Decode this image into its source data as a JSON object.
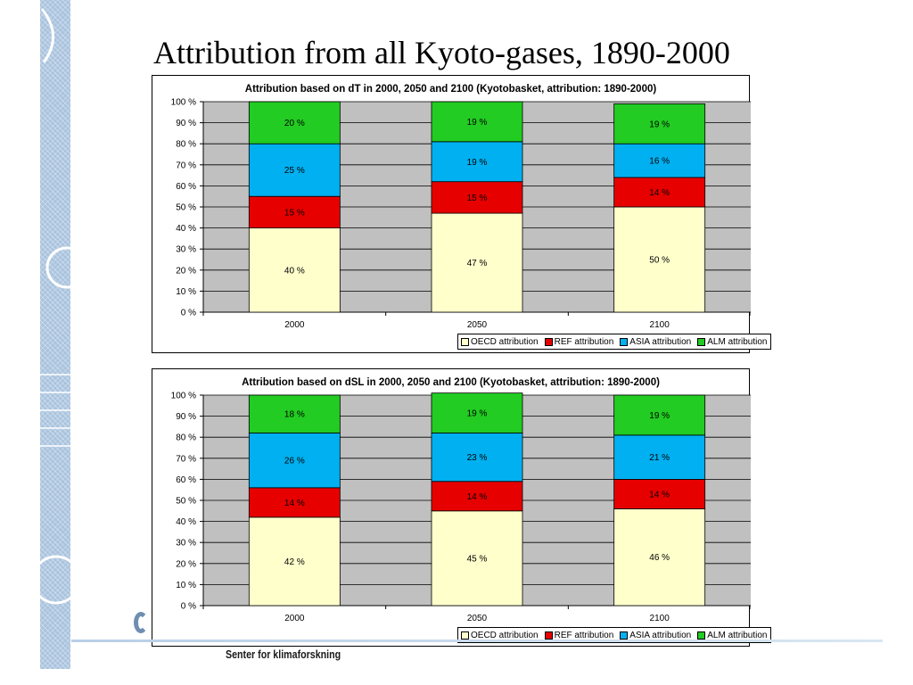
{
  "slide": {
    "title": "Attribution from all Kyoto-gases, 1890-2000",
    "footer_text": "Senter for klimaforskning"
  },
  "colors": {
    "background": "#ffffff",
    "plot_area": "#c0c0c0",
    "oecd": "#ffffcc",
    "ref": "#e60000",
    "asia": "#00b0f0",
    "alm": "#22cc22"
  },
  "chart_data": [
    {
      "type": "bar",
      "stacked": true,
      "title": "Attribution based on dT in 2000, 2050 and 2100 (Kyotobasket, attribution: 1890-2000)",
      "categories": [
        "2000",
        "2050",
        "2100"
      ],
      "ylim": [
        0,
        100
      ],
      "yticks": [
        "0 %",
        "10 %",
        "20 %",
        "30 %",
        "40 %",
        "50 %",
        "60 %",
        "70 %",
        "80 %",
        "90 %",
        "100 %"
      ],
      "grid": true,
      "legend_position": "bottom",
      "series": [
        {
          "name": "OECD attribution",
          "color": "#ffffcc",
          "values": [
            40,
            47,
            50
          ],
          "labels": [
            "40 %",
            "47 %",
            "50 %"
          ]
        },
        {
          "name": "REF attribution",
          "color": "#e60000",
          "values": [
            15,
            15,
            14
          ],
          "labels": [
            "15 %",
            "15 %",
            "14 %"
          ]
        },
        {
          "name": "ASIA attribution",
          "color": "#00b0f0",
          "values": [
            25,
            19,
            16
          ],
          "labels": [
            "25 %",
            "19 %",
            "16 %"
          ]
        },
        {
          "name": "ALM attribution",
          "color": "#22cc22",
          "values": [
            20,
            19,
            19
          ],
          "labels": [
            "20 %",
            "19 %",
            "19 %"
          ]
        }
      ]
    },
    {
      "type": "bar",
      "stacked": true,
      "title": "Attribution based on dSL in 2000, 2050 and 2100 (Kyotobasket, attribution: 1890-2000)",
      "categories": [
        "2000",
        "2050",
        "2100"
      ],
      "ylim": [
        0,
        100
      ],
      "yticks": [
        "0 %",
        "10 %",
        "20 %",
        "30 %",
        "40 %",
        "50 %",
        "60 %",
        "70 %",
        "80 %",
        "90 %",
        "100 %"
      ],
      "grid": true,
      "legend_position": "bottom",
      "series": [
        {
          "name": "OECD attribution",
          "color": "#ffffcc",
          "values": [
            42,
            45,
            46
          ],
          "labels": [
            "42 %",
            "45 %",
            "46 %"
          ]
        },
        {
          "name": "REF attribution",
          "color": "#e60000",
          "values": [
            14,
            14,
            14
          ],
          "labels": [
            "14 %",
            "14 %",
            "14 %"
          ]
        },
        {
          "name": "ASIA attribution",
          "color": "#00b0f0",
          "values": [
            26,
            23,
            21
          ],
          "labels": [
            "26 %",
            "23 %",
            "21 %"
          ]
        },
        {
          "name": "ALM attribution",
          "color": "#22cc22",
          "values": [
            18,
            19,
            19
          ],
          "labels": [
            "18 %",
            "19 %",
            "19 %"
          ]
        }
      ]
    }
  ]
}
